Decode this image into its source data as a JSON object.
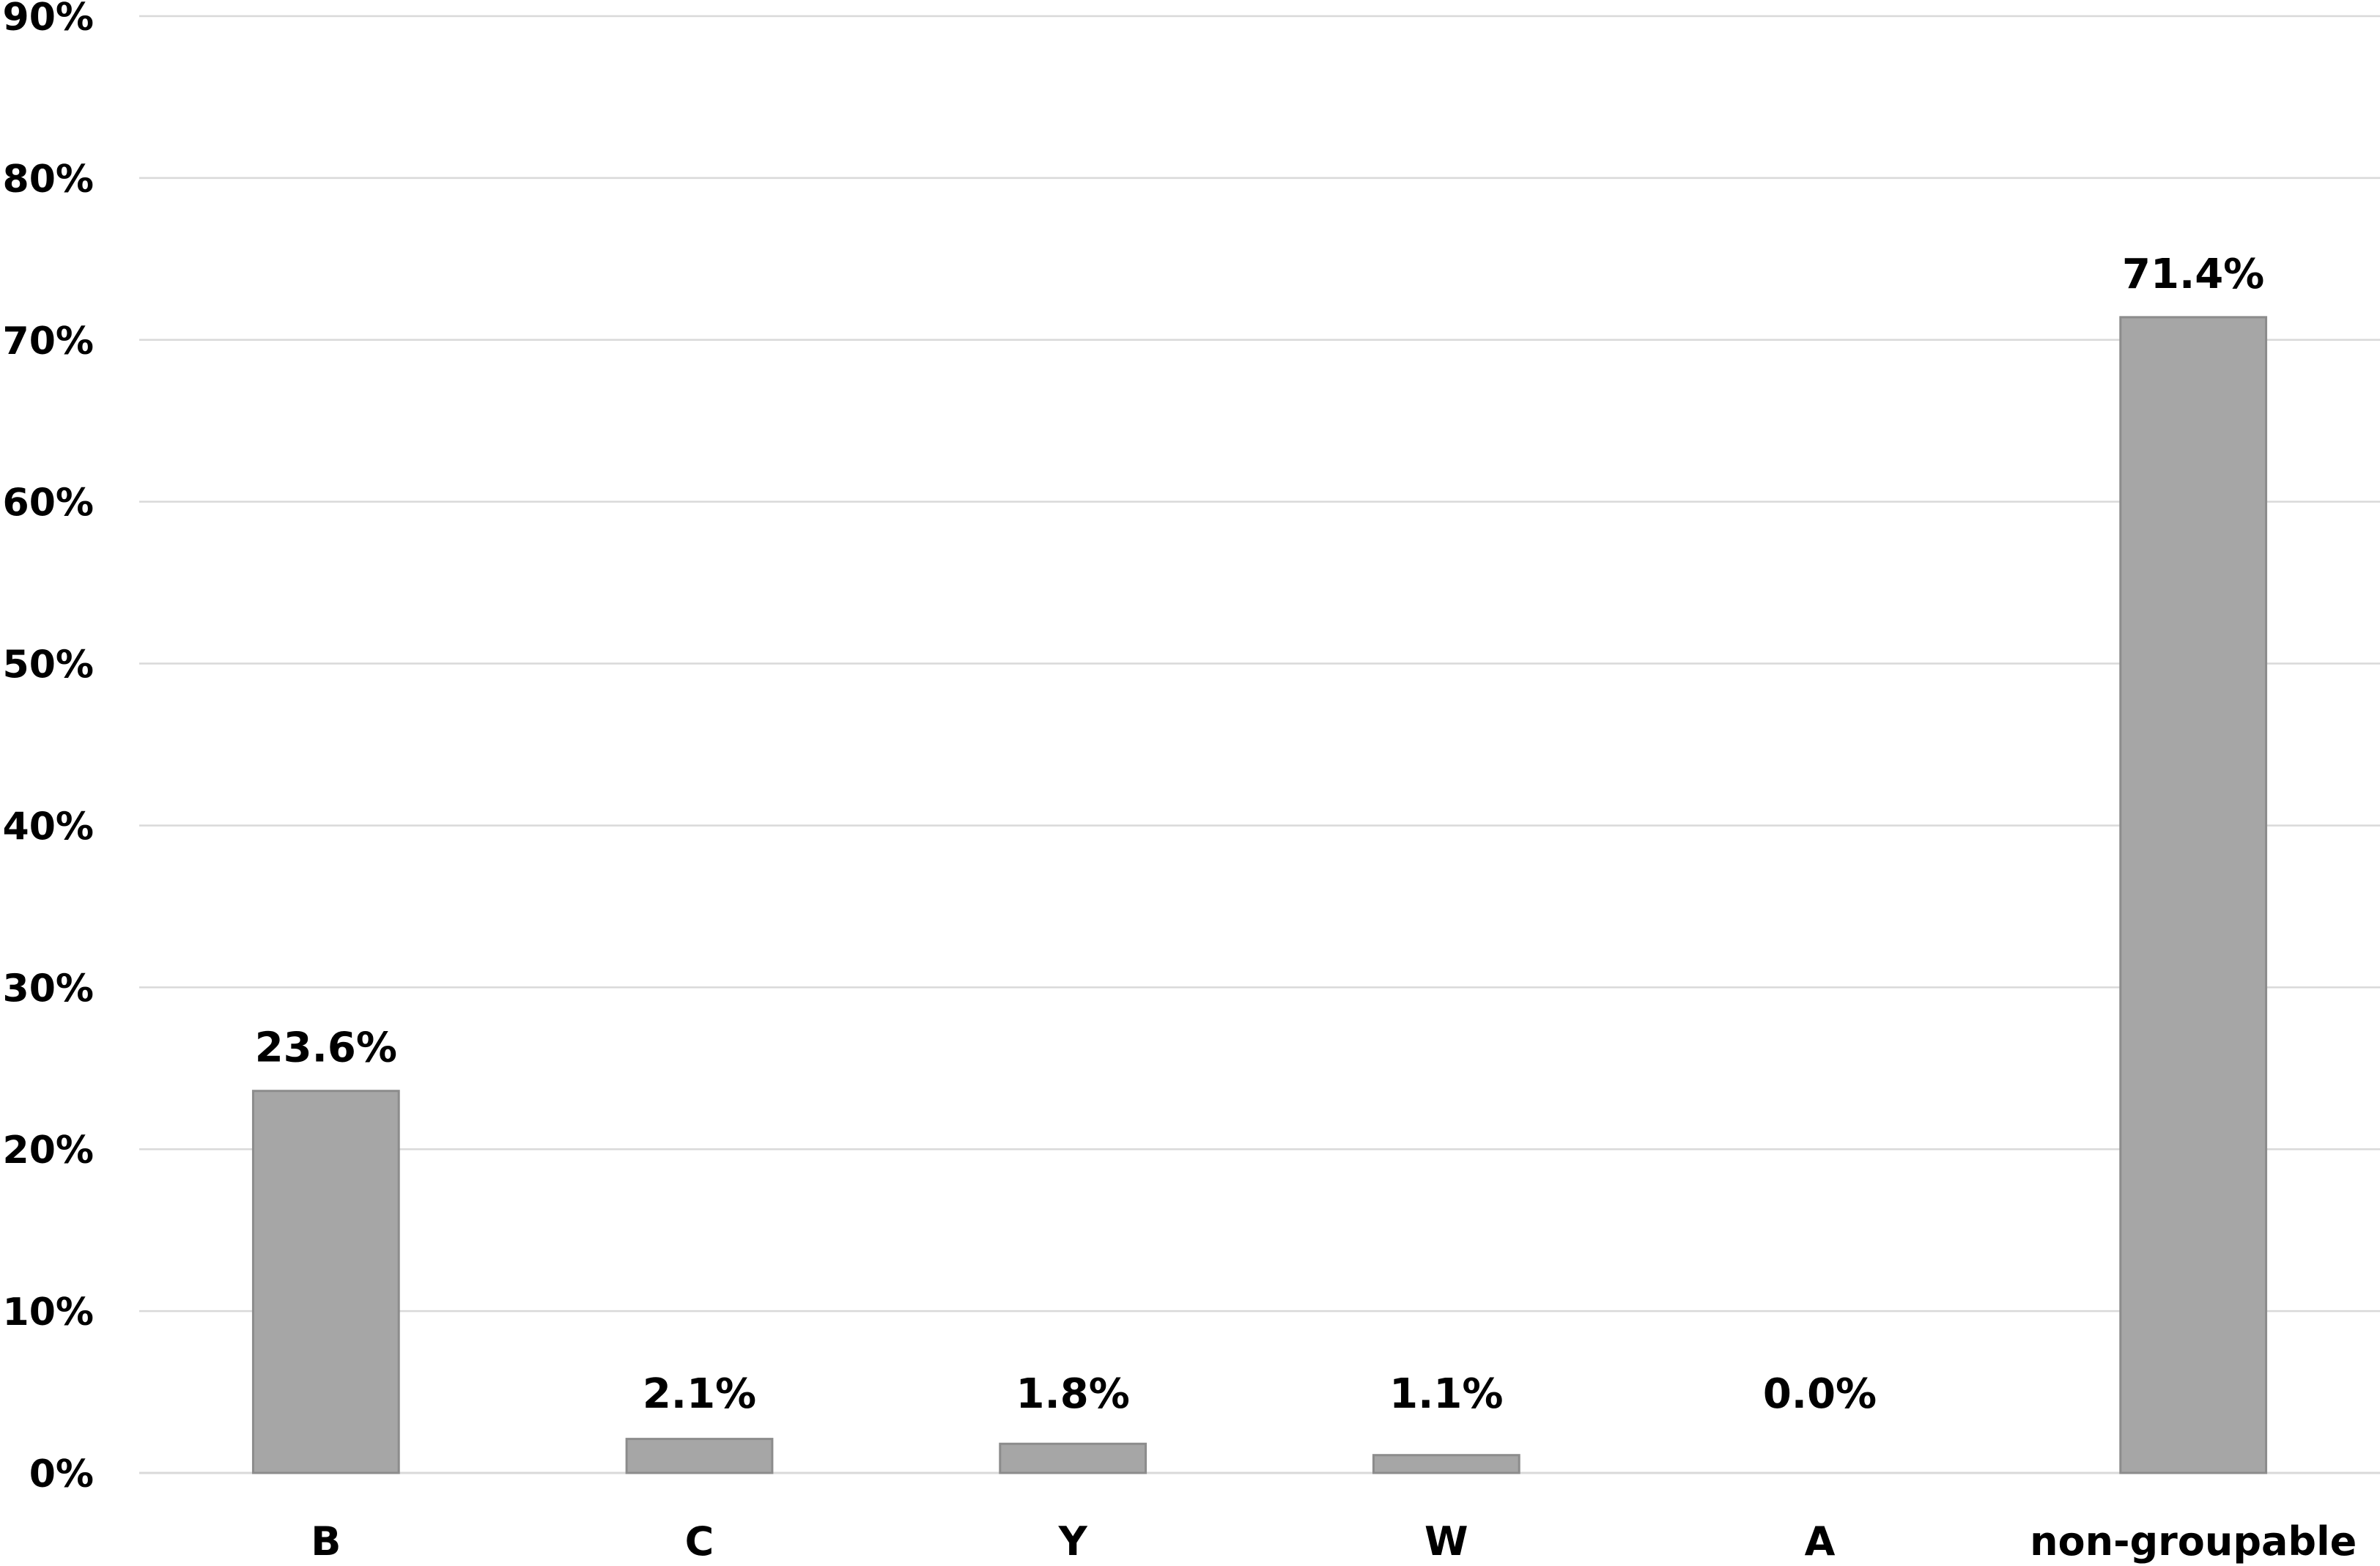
{
  "chart_data": {
    "type": "bar",
    "categories": [
      "B",
      "C",
      "Y",
      "W",
      "A",
      "non-groupable"
    ],
    "values": [
      23.6,
      2.1,
      1.8,
      1.1,
      0.0,
      71.4
    ],
    "data_labels": [
      "23.6%",
      "2.1%",
      "1.8%",
      "1.1%",
      "0.0%",
      "71.4%"
    ],
    "ylim": [
      0,
      90
    ],
    "yticks": [
      0,
      10,
      20,
      30,
      40,
      50,
      60,
      70,
      80,
      90
    ],
    "ytick_labels": [
      "0%",
      "10%",
      "20%",
      "30%",
      "40%",
      "50%",
      "60%",
      "70%",
      "80%",
      "90%"
    ],
    "title": "",
    "xlabel": "",
    "ylabel": "",
    "grid": true,
    "legend": "none",
    "colors": {
      "bar_fill": "#a6a6a6",
      "bar_stroke": "#8c8c8c",
      "gridline": "#d9d9d9",
      "text": "#000000"
    }
  }
}
